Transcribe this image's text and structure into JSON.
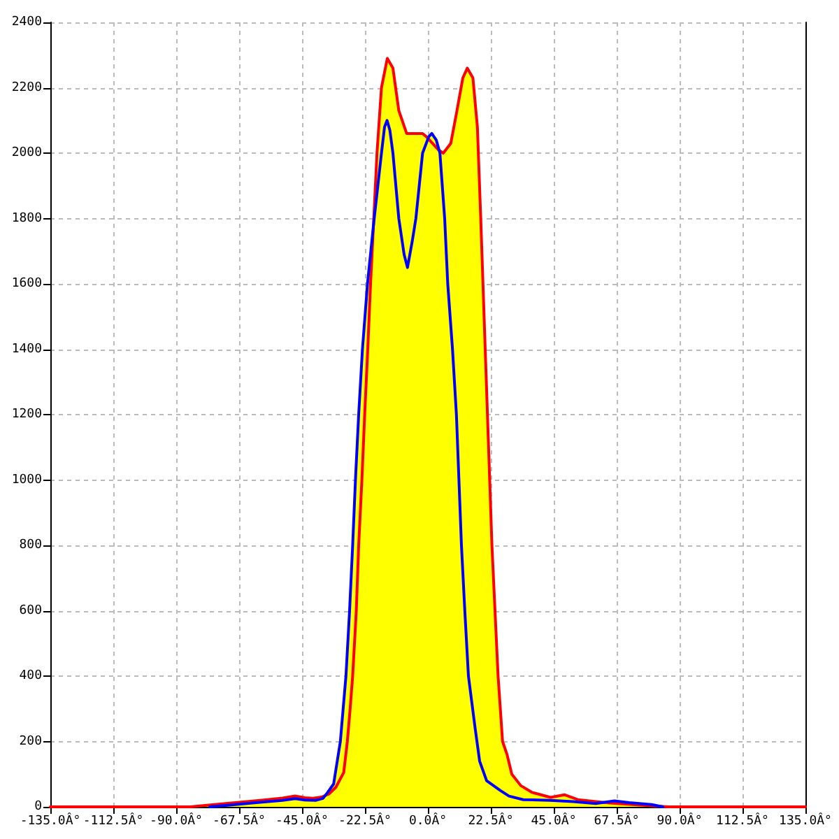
{
  "chart_data": {
    "type": "line",
    "grid": true,
    "marker": "none",
    "xlim": [
      -135,
      135
    ],
    "xticks": [
      {
        "value": -135,
        "label": "-135.0Â°"
      },
      {
        "value": -112.5,
        "label": "-112.5Â°"
      },
      {
        "value": -90,
        "label": "-90.0Â°"
      },
      {
        "value": -67.5,
        "label": "-67.5Â°"
      },
      {
        "value": -45,
        "label": "-45.0Â°"
      },
      {
        "value": -22.5,
        "label": "-22.5Â°"
      },
      {
        "value": 0,
        "label": "0.0Â°"
      },
      {
        "value": 22.5,
        "label": "22.5Â°"
      },
      {
        "value": 45,
        "label": "45.0Â°"
      },
      {
        "value": 67.5,
        "label": "67.5Â°"
      },
      {
        "value": 90,
        "label": "90.0Â°"
      },
      {
        "value": 112.5,
        "label": "112.5Â°"
      },
      {
        "value": 135,
        "label": "135.0Â°"
      }
    ],
    "ylim": [
      0,
      2400
    ],
    "yticks": [
      0,
      200,
      400,
      600,
      800,
      1000,
      1200,
      1400,
      1600,
      1800,
      2000,
      2200,
      2400
    ],
    "series": [
      {
        "type": "area",
        "color": "#ffff00",
        "x": [
          -85,
          -75,
          -67.5,
          -60,
          -52,
          -47.5,
          -44,
          -41,
          -38,
          -36.2,
          -33.7,
          -31.3,
          -29.3,
          -28,
          -26.9,
          -25.9,
          -24.75,
          -23.4,
          -21.6,
          -19.5,
          -18.2,
          -16.6,
          -14.5,
          -12.5,
          -10.4,
          -7.6,
          -5.1,
          -1.9,
          -0.5,
          1.4,
          3,
          3.8,
          5.5,
          8.2,
          10.4,
          12.5,
          14.1,
          16.1,
          17.7,
          18.9,
          19.7,
          20.5,
          21.3,
          22.1,
          22.9,
          24,
          25.1,
          26.7,
          28.3,
          30,
          33.2,
          37.3,
          43.9,
          48.8,
          53.6,
          60,
          65,
          66.7,
          72,
          80,
          86
        ],
        "values": [
          0,
          8,
          14,
          20,
          27,
          33,
          28,
          26,
          30,
          40,
          70,
          200,
          400,
          600,
          800,
          1000,
          1200,
          1400,
          1600,
          1780,
          2000,
          2200,
          2290,
          2260,
          2130,
          2060,
          2060,
          2060,
          2050,
          2060,
          2040,
          2015,
          2000,
          2030,
          2130,
          2230,
          2260,
          2230,
          2080,
          1800,
          1600,
          1400,
          1200,
          1000,
          800,
          600,
          400,
          200,
          160,
          100,
          65,
          44,
          29,
          37,
          22,
          16,
          12,
          18,
          13,
          7,
          0
        ]
      },
      {
        "color": "#ff0000",
        "x": [
          -135,
          -85,
          -75,
          -67.5,
          -60,
          -52,
          -47.5,
          -44,
          -41,
          -38,
          -35.3,
          -32.9,
          -30.1,
          -28.8,
          -27.8,
          -26.9,
          -25.6,
          -24.75,
          -23.6,
          -22.6,
          -21.5,
          -20.5,
          -18.2,
          -16.6,
          -14.5,
          -12.5,
          -10.4,
          -7.6,
          -5.1,
          -1.9,
          -0.5,
          3.8,
          5.5,
          8.2,
          10.4,
          12.5,
          14.1,
          16.1,
          17.7,
          18.9,
          19.7,
          20.5,
          21.3,
          22.1,
          22.9,
          24,
          25.1,
          26.7,
          28.3,
          30,
          33.2,
          37.3,
          43.9,
          48.8,
          53.6,
          60,
          65,
          75,
          86,
          135
        ],
        "values": [
          0,
          0,
          8,
          14,
          20,
          27,
          33,
          28,
          26,
          30,
          40,
          60,
          105,
          200,
          300,
          400,
          600,
          800,
          1000,
          1200,
          1400,
          1600,
          2000,
          2200,
          2290,
          2260,
          2130,
          2060,
          2060,
          2060,
          2050,
          2010,
          2000,
          2030,
          2130,
          2230,
          2260,
          2230,
          2080,
          1800,
          1600,
          1400,
          1200,
          1000,
          800,
          600,
          400,
          200,
          160,
          100,
          65,
          44,
          29,
          37,
          22,
          16,
          12,
          6,
          0,
          0
        ]
      },
      {
        "color": "#0000ff",
        "x": [
          -78,
          -67.5,
          -60,
          -52,
          -47.5,
          -44,
          -40,
          -37.5,
          -36.2,
          -33.7,
          -31.3,
          -29.3,
          -28,
          -26.9,
          -25.9,
          -24.75,
          -23.4,
          -21.6,
          -19.2,
          -16.6,
          -15.5,
          -14.6,
          -13.6,
          -12.5,
          -10.4,
          -8.5,
          -7.3,
          -5.6,
          -4.3,
          -1.9,
          0.3,
          1.4,
          3,
          4.3,
          6,
          7.1,
          8.8,
          10.2,
          11.1,
          12,
          13.2,
          14.5,
          16.9,
          18.5,
          21,
          25.9,
          29,
          34.1,
          43.8,
          52,
          60,
          66.7,
          72,
          80,
          84
        ],
        "values": [
          0,
          8,
          14,
          20,
          25,
          21,
          20,
          26,
          40,
          70,
          200,
          400,
          600,
          800,
          1000,
          1200,
          1400,
          1600,
          1800,
          2000,
          2080,
          2100,
          2070,
          2000,
          1800,
          1690,
          1650,
          1730,
          1800,
          2000,
          2050,
          2060,
          2040,
          2000,
          1800,
          1600,
          1400,
          1200,
          1000,
          800,
          600,
          400,
          240,
          140,
          80,
          50,
          33,
          22,
          20,
          16,
          10,
          18,
          13,
          7,
          0
        ]
      }
    ]
  }
}
